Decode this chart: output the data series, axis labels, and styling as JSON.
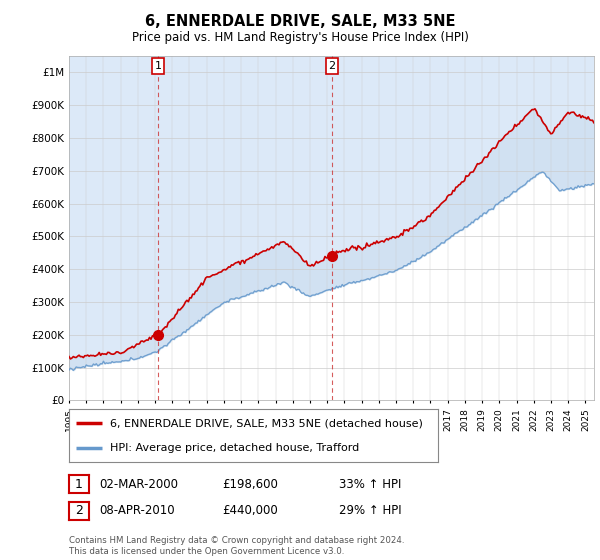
{
  "title": "6, ENNERDALE DRIVE, SALE, M33 5NE",
  "subtitle": "Price paid vs. HM Land Registry's House Price Index (HPI)",
  "ylabel_values": [
    "£0",
    "£100K",
    "£200K",
    "£300K",
    "£400K",
    "£500K",
    "£600K",
    "£700K",
    "£800K",
    "£900K",
    "£1M"
  ],
  "yticks": [
    0,
    100000,
    200000,
    300000,
    400000,
    500000,
    600000,
    700000,
    800000,
    900000,
    1000000
  ],
  "ylim": [
    0,
    1050000
  ],
  "xlim_start": 1995.0,
  "xlim_end": 2025.5,
  "sale1_x": 2000.17,
  "sale1_y": 198600,
  "sale2_x": 2010.27,
  "sale2_y": 440000,
  "legend_house": "6, ENNERDALE DRIVE, SALE, M33 5NE (detached house)",
  "legend_hpi": "HPI: Average price, detached house, Trafford",
  "annotation1_date": "02-MAR-2000",
  "annotation1_price": "£198,600",
  "annotation1_hpi": "33% ↑ HPI",
  "annotation2_date": "08-APR-2010",
  "annotation2_price": "£440,000",
  "annotation2_hpi": "29% ↑ HPI",
  "footer": "Contains HM Land Registry data © Crown copyright and database right 2024.\nThis data is licensed under the Open Government Licence v3.0.",
  "line_color_house": "#cc0000",
  "line_color_hpi": "#6699cc",
  "fill_color": "#dce8f5",
  "plot_bg_color": "#ffffff",
  "vline_color": "#cc3333",
  "grid_color": "#cccccc"
}
